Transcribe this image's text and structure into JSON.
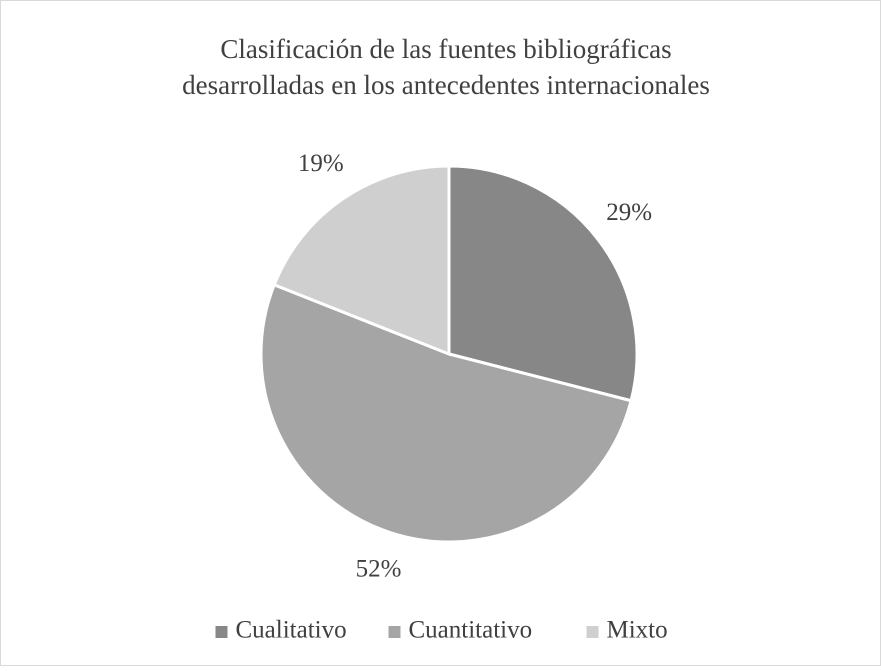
{
  "chart_data": {
    "type": "pie",
    "title": [
      "Clasificación de las fuentes bibliográficas",
      "desarrolladas en los antecedentes internacionales"
    ],
    "categories": [
      "Cualitativo",
      "Cuantitativo",
      "Mixto"
    ],
    "values": [
      29,
      52,
      19
    ],
    "value_labels": [
      "29%",
      "52%",
      "19%"
    ],
    "colors": [
      "#878787",
      "#a5a5a5",
      "#cfcfcf"
    ],
    "legend": "bottom"
  }
}
